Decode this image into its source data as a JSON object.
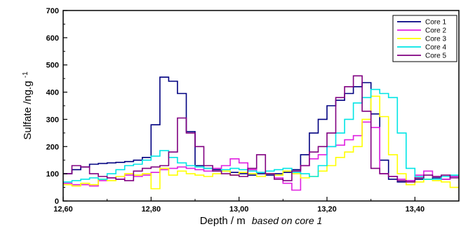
{
  "chart_data": {
    "type": "line",
    "step": true,
    "title": "",
    "xlabel": "Depth / m",
    "xlabel_note": "based on core 1",
    "ylabel": "Sulfate /ng.g",
    "ylabel_sup": "-1",
    "xlim": [
      12.6,
      13.5
    ],
    "ylim": [
      0,
      700
    ],
    "x_ticks": [
      "12,60",
      "12,80",
      "13,00",
      "13,20",
      "13,40"
    ],
    "y_ticks": [
      "0",
      "100",
      "200",
      "300",
      "400",
      "500",
      "600",
      "700"
    ],
    "grid": false,
    "legend_position": "top-right",
    "series": [
      {
        "name": "Core 1",
        "color": "#000080",
        "x": [
          12.6,
          12.62,
          12.64,
          12.66,
          12.68,
          12.7,
          12.72,
          12.74,
          12.76,
          12.78,
          12.8,
          12.82,
          12.84,
          12.86,
          12.88,
          12.9,
          12.92,
          12.94,
          12.96,
          12.98,
          13.0,
          13.02,
          13.04,
          13.06,
          13.08,
          13.1,
          13.12,
          13.14,
          13.16,
          13.18,
          13.2,
          13.22,
          13.24,
          13.26,
          13.28,
          13.3,
          13.32,
          13.34,
          13.36,
          13.38,
          13.4,
          13.42,
          13.44,
          13.46,
          13.48
        ],
        "y": [
          100,
          115,
          125,
          135,
          138,
          140,
          142,
          145,
          150,
          160,
          280,
          455,
          440,
          395,
          255,
          130,
          120,
          115,
          110,
          105,
          100,
          95,
          100,
          95,
          100,
          105,
          115,
          170,
          250,
          300,
          350,
          370,
          395,
          420,
          435,
          320,
          150,
          80,
          70,
          75,
          80,
          80,
          85,
          80,
          90
        ]
      },
      {
        "name": "Core 2",
        "color": "#e020e0",
        "x": [
          12.6,
          12.62,
          12.64,
          12.66,
          12.68,
          12.7,
          12.72,
          12.74,
          12.76,
          12.78,
          12.8,
          12.82,
          12.84,
          12.86,
          12.88,
          12.9,
          12.92,
          12.94,
          12.96,
          12.98,
          13.0,
          13.02,
          13.04,
          13.06,
          13.08,
          13.1,
          13.12,
          13.14,
          13.16,
          13.18,
          13.2,
          13.22,
          13.24,
          13.26,
          13.28,
          13.3,
          13.32,
          13.34,
          13.36,
          13.38,
          13.4,
          13.42,
          13.44,
          13.46,
          13.48
        ],
        "y": [
          65,
          60,
          60,
          55,
          75,
          85,
          80,
          95,
          90,
          95,
          105,
          115,
          120,
          125,
          120,
          115,
          110,
          120,
          130,
          155,
          140,
          115,
          105,
          100,
          85,
          65,
          40,
          130,
          155,
          170,
          200,
          205,
          225,
          240,
          290,
          270,
          100,
          90,
          80,
          75,
          95,
          110,
          90,
          80,
          90
        ]
      },
      {
        "name": "Core 3",
        "color": "#ffff00",
        "x": [
          12.6,
          12.62,
          12.64,
          12.66,
          12.68,
          12.7,
          12.72,
          12.74,
          12.76,
          12.78,
          12.8,
          12.82,
          12.84,
          12.86,
          12.88,
          12.9,
          12.92,
          12.94,
          12.96,
          12.98,
          13.0,
          13.02,
          13.04,
          13.06,
          13.08,
          13.1,
          13.12,
          13.14,
          13.16,
          13.18,
          13.2,
          13.22,
          13.24,
          13.26,
          13.28,
          13.3,
          13.32,
          13.34,
          13.36,
          13.38,
          13.4,
          13.42,
          13.44,
          13.46,
          13.48
        ],
        "y": [
          60,
          55,
          65,
          60,
          80,
          75,
          90,
          100,
          95,
          100,
          45,
          120,
          95,
          110,
          100,
          95,
          90,
          100,
          110,
          95,
          105,
          100,
          90,
          100,
          95,
          110,
          100,
          85,
          90,
          110,
          130,
          160,
          180,
          200,
          300,
          385,
          310,
          170,
          100,
          60,
          70,
          80,
          75,
          70,
          50
        ]
      },
      {
        "name": "Core 4",
        "color": "#00e5e5",
        "x": [
          12.6,
          12.62,
          12.64,
          12.66,
          12.68,
          12.7,
          12.72,
          12.74,
          12.76,
          12.78,
          12.8,
          12.82,
          12.84,
          12.86,
          12.88,
          12.9,
          12.92,
          12.94,
          12.96,
          12.98,
          13.0,
          13.02,
          13.04,
          13.06,
          13.08,
          13.1,
          13.12,
          13.14,
          13.16,
          13.18,
          13.2,
          13.22,
          13.24,
          13.26,
          13.28,
          13.3,
          13.32,
          13.34,
          13.36,
          13.38,
          13.4,
          13.42,
          13.44,
          13.46,
          13.48
        ],
        "y": [
          70,
          75,
          80,
          85,
          80,
          100,
          115,
          130,
          135,
          150,
          165,
          185,
          160,
          140,
          130,
          125,
          120,
          110,
          115,
          120,
          115,
          110,
          105,
          110,
          115,
          120,
          105,
          100,
          90,
          130,
          200,
          250,
          300,
          360,
          380,
          410,
          395,
          380,
          250,
          120,
          90,
          80,
          80,
          90,
          95
        ]
      },
      {
        "name": "Core 5",
        "color": "#800080",
        "x": [
          12.6,
          12.62,
          12.64,
          12.66,
          12.68,
          12.7,
          12.72,
          12.74,
          12.76,
          12.78,
          12.8,
          12.82,
          12.84,
          12.86,
          12.88,
          12.9,
          12.92,
          12.94,
          12.96,
          12.98,
          13.0,
          13.02,
          13.04,
          13.06,
          13.08,
          13.1,
          13.12,
          13.14,
          13.16,
          13.18,
          13.2,
          13.22,
          13.24,
          13.26,
          13.28,
          13.3,
          13.32,
          13.34,
          13.36,
          13.38,
          13.4,
          13.42,
          13.44,
          13.46,
          13.48
        ],
        "y": [
          100,
          130,
          125,
          100,
          90,
          85,
          80,
          75,
          110,
          120,
          125,
          130,
          180,
          305,
          250,
          200,
          130,
          110,
          100,
          95,
          90,
          120,
          170,
          100,
          80,
          75,
          110,
          130,
          180,
          200,
          250,
          380,
          420,
          460,
          330,
          120,
          100,
          90,
          75,
          70,
          85,
          95,
          90,
          95,
          85
        ]
      }
    ]
  }
}
